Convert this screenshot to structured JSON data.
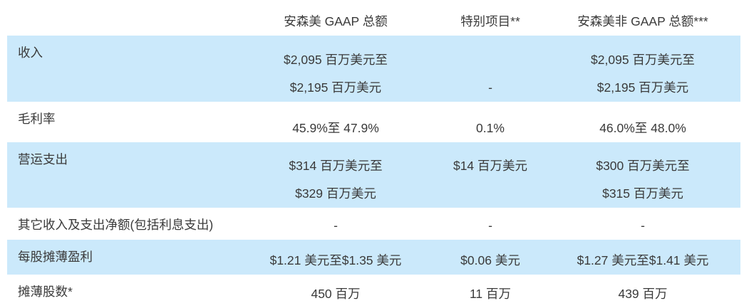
{
  "columns": [
    "",
    "安森美 GAAP 总额",
    "特别项目**",
    "安森美非 GAAP 总额***"
  ],
  "rows": [
    {
      "label": "收入",
      "values": [
        [
          "$2,095 百万美元至",
          "$2,195 百万美元"
        ],
        [
          "",
          "-"
        ],
        [
          "$2,095 百万美元至",
          "$2,195 百万美元"
        ]
      ]
    },
    {
      "label": "毛利率",
      "values": [
        [
          "45.9%至 47.9%"
        ],
        [
          "0.1%"
        ],
        [
          "46.0%至 48.0%"
        ]
      ]
    },
    {
      "label": "营运支出",
      "values": [
        [
          "$314 百万美元至",
          "$329 百万美元"
        ],
        [
          "$14 百万美元",
          ""
        ],
        [
          "$300 百万美元至",
          "$315 百万美元"
        ]
      ]
    },
    {
      "label": "其它收入及支出净额(包括利息支出)",
      "values": [
        [
          "-"
        ],
        [
          "-"
        ],
        [
          "-"
        ]
      ]
    },
    {
      "label": "每股摊薄盈利",
      "values": [
        [
          "$1.21 美元至$1.35 美元"
        ],
        [
          "$0.06 美元"
        ],
        [
          "$1.27 美元至$1.41 美元"
        ]
      ]
    },
    {
      "label": "摊薄股数*",
      "values": [
        [
          "450 百万"
        ],
        [
          "11 百万"
        ],
        [
          "439 百万"
        ]
      ]
    }
  ],
  "colors": {
    "row_highlight": "#cbe9fb",
    "background": "#ffffff",
    "text": "#3a3a3a"
  }
}
